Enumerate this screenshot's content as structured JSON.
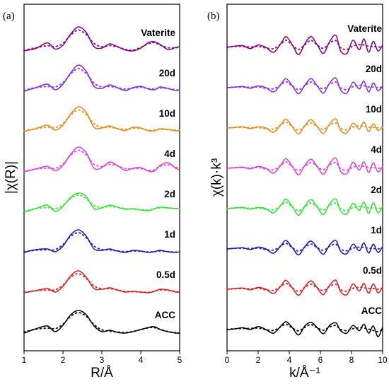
{
  "chart_data": [
    {
      "panel": "(a)",
      "type": "line",
      "xlabel": "R/Å",
      "ylabel": "|χ(R)|",
      "xlim": [
        1,
        5
      ],
      "x_ticks": [
        "1",
        "2",
        "3",
        "4",
        "5"
      ],
      "y_ticks": [],
      "stacked": true,
      "line_style": "solid = experiment, dotted = fit",
      "series": [
        {
          "name": "Vaterite",
          "color": "#800080",
          "offset": 7,
          "x": [
            1.0,
            1.3,
            1.6,
            1.8,
            2.0,
            2.2,
            2.4,
            2.6,
            2.8,
            3.0,
            3.2,
            3.4,
            3.6,
            3.8,
            4.0,
            4.2,
            4.35,
            4.5,
            4.7,
            4.9,
            5.0
          ],
          "values": [
            0.05,
            0.22,
            0.62,
            0.18,
            0.45,
            1.25,
            1.75,
            1.35,
            0.35,
            0.25,
            0.55,
            0.35,
            0.12,
            0.05,
            0.25,
            0.65,
            0.7,
            0.5,
            0.15,
            0.3,
            0.35
          ]
        },
        {
          "name": "20d",
          "color": "#8A2BE2",
          "offset": 6,
          "x": [
            1.0,
            1.3,
            1.6,
            1.8,
            2.0,
            2.2,
            2.4,
            2.6,
            2.8,
            3.0,
            3.2,
            3.4,
            3.6,
            3.8,
            4.0,
            4.2,
            4.35,
            4.5,
            4.7,
            4.9,
            5.0
          ],
          "values": [
            0.05,
            0.3,
            0.55,
            0.15,
            0.55,
            1.35,
            1.9,
            1.45,
            0.4,
            0.25,
            0.5,
            0.3,
            0.1,
            0.3,
            0.4,
            0.2,
            0.15,
            0.35,
            0.25,
            0.1,
            0.15
          ]
        },
        {
          "name": "10d",
          "color": "#E8891A",
          "offset": 5,
          "x": [
            1.0,
            1.3,
            1.6,
            1.8,
            2.0,
            2.2,
            2.4,
            2.6,
            2.8,
            3.0,
            3.2,
            3.4,
            3.6,
            3.8,
            4.0,
            4.2,
            4.35,
            4.5,
            4.7,
            4.9,
            5.0
          ],
          "values": [
            0.05,
            0.25,
            0.5,
            0.15,
            0.5,
            1.3,
            1.8,
            1.4,
            0.35,
            0.3,
            0.45,
            0.25,
            0.12,
            0.35,
            0.3,
            0.1,
            0.1,
            0.25,
            0.2,
            0.1,
            0.15
          ]
        },
        {
          "name": "4d",
          "color": "#E040E0",
          "offset": 4,
          "x": [
            1.0,
            1.3,
            1.6,
            1.8,
            2.0,
            2.2,
            2.4,
            2.6,
            2.8,
            3.0,
            3.2,
            3.4,
            3.6,
            3.8,
            4.0,
            4.2,
            4.35,
            4.5,
            4.7,
            4.9,
            5.0
          ],
          "values": [
            0.05,
            0.25,
            0.45,
            0.12,
            0.5,
            1.3,
            1.8,
            1.4,
            0.3,
            0.35,
            0.75,
            0.5,
            0.15,
            0.3,
            0.35,
            0.1,
            0.1,
            0.5,
            0.7,
            0.3,
            0.2
          ]
        },
        {
          "name": "2d",
          "color": "#33E633",
          "offset": 3,
          "x": [
            1.0,
            1.3,
            1.6,
            1.8,
            2.0,
            2.2,
            2.4,
            2.6,
            2.8,
            3.0,
            3.2,
            3.4,
            3.6,
            3.8,
            4.0,
            4.2,
            4.35,
            4.5,
            4.7,
            4.9,
            5.0
          ],
          "values": [
            0.05,
            0.3,
            0.55,
            0.1,
            0.45,
            1.1,
            1.4,
            1.15,
            0.3,
            0.35,
            0.55,
            0.4,
            0.25,
            0.3,
            0.2,
            0.15,
            0.3,
            0.4,
            0.35,
            0.3,
            0.3
          ]
        },
        {
          "name": "1d",
          "color": "#1A1AB0",
          "offset": 2,
          "x": [
            1.0,
            1.3,
            1.6,
            1.8,
            2.0,
            2.2,
            2.4,
            2.6,
            2.8,
            3.0,
            3.2,
            3.4,
            3.6,
            3.8,
            4.0,
            4.2,
            4.35,
            4.5,
            4.7,
            4.9,
            5.0
          ],
          "values": [
            0.05,
            0.25,
            0.3,
            0.1,
            0.5,
            1.3,
            1.65,
            1.2,
            0.3,
            0.2,
            0.3,
            0.15,
            0.05,
            0.2,
            0.15,
            0.05,
            0.1,
            0.2,
            0.1,
            0.05,
            0.1
          ]
        },
        {
          "name": "0.5d",
          "color": "#D42020",
          "offset": 1,
          "x": [
            1.0,
            1.3,
            1.6,
            1.8,
            2.0,
            2.2,
            2.4,
            2.6,
            2.8,
            3.0,
            3.2,
            3.4,
            3.6,
            3.8,
            4.0,
            4.2,
            4.35,
            4.5,
            4.7,
            4.9,
            5.0
          ],
          "values": [
            0.05,
            0.2,
            0.35,
            0.1,
            0.5,
            1.25,
            1.6,
            1.15,
            0.35,
            0.3,
            0.4,
            0.25,
            0.1,
            0.15,
            0.1,
            0.05,
            0.15,
            0.3,
            0.25,
            0.1,
            0.1
          ]
        },
        {
          "name": "ACC",
          "color": "#000000",
          "offset": 0,
          "x": [
            1.0,
            1.3,
            1.6,
            1.8,
            2.0,
            2.2,
            2.4,
            2.6,
            2.8,
            3.0,
            3.2,
            3.4,
            3.6,
            3.8,
            4.0,
            4.2,
            4.35,
            4.5,
            4.7,
            4.9,
            5.0
          ],
          "values": [
            0.05,
            0.35,
            0.55,
            0.15,
            0.6,
            1.35,
            1.65,
            1.35,
            0.55,
            0.15,
            0.25,
            0.1,
            0.05,
            0.15,
            0.3,
            0.45,
            0.5,
            0.3,
            0.15,
            0.05,
            0.05
          ]
        }
      ]
    },
    {
      "panel": "(b)",
      "type": "line",
      "xlabel": "k/Å⁻¹",
      "ylabel": "χ(k)·k³",
      "xlim": [
        0,
        10
      ],
      "x_ticks": [
        "0",
        "2",
        "4",
        "6",
        "8",
        "10"
      ],
      "y_ticks": [],
      "stacked": true,
      "line_style": "solid = experiment, dotted = fit",
      "series": [
        {
          "name": "Vaterite",
          "color": "#800080",
          "offset": 7,
          "x": [
            0.0,
            0.5,
            1.0,
            1.5,
            2.0,
            2.5,
            3.0,
            3.5,
            3.8,
            4.2,
            4.6,
            5.0,
            5.4,
            5.8,
            6.2,
            6.6,
            7.0,
            7.3,
            7.7,
            8.1,
            8.5,
            8.8,
            9.1,
            9.4,
            9.7,
            10.0
          ],
          "values": [
            0.0,
            0.1,
            0.15,
            -0.1,
            0.2,
            0.0,
            -0.4,
            0.4,
            0.9,
            0.2,
            -0.6,
            0.3,
            0.9,
            0.2,
            -0.5,
            0.5,
            1.0,
            -0.3,
            -0.5,
            0.6,
            -0.2,
            0.7,
            -0.4,
            0.5,
            -0.3,
            0.2
          ]
        },
        {
          "name": "20d",
          "color": "#8A2BE2",
          "offset": 6,
          "x": [
            0.0,
            0.5,
            1.0,
            1.5,
            2.0,
            2.5,
            3.0,
            3.5,
            3.8,
            4.2,
            4.6,
            5.0,
            5.4,
            5.8,
            6.2,
            6.6,
            7.0,
            7.3,
            7.7,
            8.1,
            8.5,
            8.8,
            9.1,
            9.4,
            9.7,
            10.0
          ],
          "values": [
            0.0,
            0.05,
            0.1,
            -0.05,
            0.15,
            0.0,
            -0.35,
            0.35,
            0.75,
            0.15,
            -0.5,
            0.2,
            0.75,
            0.15,
            -0.45,
            0.4,
            0.8,
            -0.2,
            -0.45,
            0.45,
            -0.1,
            0.55,
            -0.35,
            0.4,
            -0.25,
            0.15
          ]
        },
        {
          "name": "10d",
          "color": "#E8891A",
          "offset": 5,
          "x": [
            0.0,
            0.5,
            1.0,
            1.5,
            2.0,
            2.5,
            3.0,
            3.5,
            3.8,
            4.2,
            4.6,
            5.0,
            5.4,
            5.8,
            6.2,
            6.6,
            7.0,
            7.3,
            7.7,
            8.1,
            8.5,
            8.8,
            9.1,
            9.4,
            9.7,
            10.0
          ],
          "values": [
            0.0,
            0.05,
            0.1,
            -0.05,
            0.1,
            0.0,
            -0.35,
            0.35,
            0.75,
            0.1,
            -0.5,
            0.2,
            0.7,
            0.1,
            -0.45,
            0.35,
            0.75,
            -0.2,
            -0.4,
            0.4,
            -0.1,
            0.5,
            -0.3,
            0.35,
            -0.2,
            0.1
          ]
        },
        {
          "name": "4d",
          "color": "#E040E0",
          "offset": 4,
          "x": [
            0.0,
            0.5,
            1.0,
            1.5,
            2.0,
            2.5,
            3.0,
            3.5,
            3.8,
            4.2,
            4.6,
            5.0,
            5.4,
            5.8,
            6.2,
            6.6,
            7.0,
            7.3,
            7.7,
            8.1,
            8.5,
            8.8,
            9.1,
            9.4,
            9.7,
            10.0
          ],
          "values": [
            0.0,
            0.05,
            0.1,
            -0.05,
            0.15,
            0.0,
            -0.4,
            0.35,
            0.8,
            0.15,
            -0.55,
            0.25,
            0.75,
            0.15,
            -0.5,
            0.4,
            0.85,
            -0.25,
            -0.45,
            0.5,
            -0.15,
            0.55,
            -0.35,
            0.45,
            -0.3,
            0.15
          ]
        },
        {
          "name": "2d",
          "color": "#33E633",
          "offset": 3,
          "x": [
            0.0,
            0.5,
            1.0,
            1.5,
            2.0,
            2.5,
            3.0,
            3.5,
            3.8,
            4.2,
            4.6,
            5.0,
            5.4,
            5.8,
            6.2,
            6.6,
            7.0,
            7.3,
            7.7,
            8.1,
            8.5,
            8.8,
            9.1,
            9.4,
            9.7,
            10.0
          ],
          "values": [
            0.0,
            0.05,
            0.1,
            -0.05,
            0.1,
            0.0,
            -0.35,
            0.35,
            0.8,
            0.15,
            -0.55,
            0.2,
            0.75,
            0.15,
            -0.5,
            0.4,
            0.8,
            -0.2,
            -0.45,
            0.45,
            -0.15,
            0.55,
            -0.4,
            0.5,
            -0.35,
            0.2
          ]
        },
        {
          "name": "1d",
          "color": "#1A1AB0",
          "offset": 2,
          "x": [
            0.0,
            0.5,
            1.0,
            1.5,
            2.0,
            2.5,
            3.0,
            3.5,
            3.8,
            4.2,
            4.6,
            5.0,
            5.4,
            5.8,
            6.2,
            6.6,
            7.0,
            7.3,
            7.7,
            8.1,
            8.5,
            8.8,
            9.1,
            9.4,
            9.7,
            10.0
          ],
          "values": [
            0.0,
            0.05,
            0.1,
            -0.05,
            0.15,
            0.0,
            -0.35,
            0.35,
            0.7,
            0.1,
            -0.5,
            0.2,
            0.65,
            0.1,
            -0.45,
            0.35,
            0.7,
            -0.2,
            -0.4,
            0.4,
            -0.15,
            0.5,
            -0.35,
            0.4,
            -0.3,
            0.2
          ]
        },
        {
          "name": "0.5d",
          "color": "#D42020",
          "offset": 1,
          "x": [
            0.0,
            0.5,
            1.0,
            1.5,
            2.0,
            2.5,
            3.0,
            3.5,
            3.8,
            4.2,
            4.6,
            5.0,
            5.4,
            5.8,
            6.2,
            6.6,
            7.0,
            7.3,
            7.7,
            8.1,
            8.5,
            8.8,
            9.1,
            9.4,
            9.7,
            10.0
          ],
          "values": [
            0.0,
            0.05,
            0.1,
            -0.05,
            0.15,
            0.0,
            -0.35,
            0.35,
            0.75,
            0.1,
            -0.5,
            0.2,
            0.7,
            0.1,
            -0.45,
            0.35,
            0.75,
            -0.2,
            -0.45,
            0.45,
            -0.15,
            0.5,
            -0.35,
            0.45,
            -0.3,
            0.2
          ]
        },
        {
          "name": "ACC",
          "color": "#000000",
          "offset": 0,
          "x": [
            0.0,
            0.5,
            1.0,
            1.5,
            2.0,
            2.5,
            3.0,
            3.5,
            3.8,
            4.2,
            4.6,
            5.0,
            5.4,
            5.8,
            6.2,
            6.6,
            7.0,
            7.3,
            7.7,
            8.1,
            8.5,
            8.8,
            9.1,
            9.4,
            9.7,
            10.0
          ],
          "values": [
            0.0,
            0.05,
            0.15,
            0.0,
            0.25,
            0.0,
            -0.3,
            0.35,
            0.65,
            0.15,
            -0.45,
            0.3,
            0.6,
            0.15,
            -0.35,
            0.35,
            0.55,
            -0.1,
            -0.3,
            0.35,
            -0.1,
            0.45,
            -0.3,
            0.3,
            -0.6,
            0.2
          ]
        }
      ]
    }
  ]
}
